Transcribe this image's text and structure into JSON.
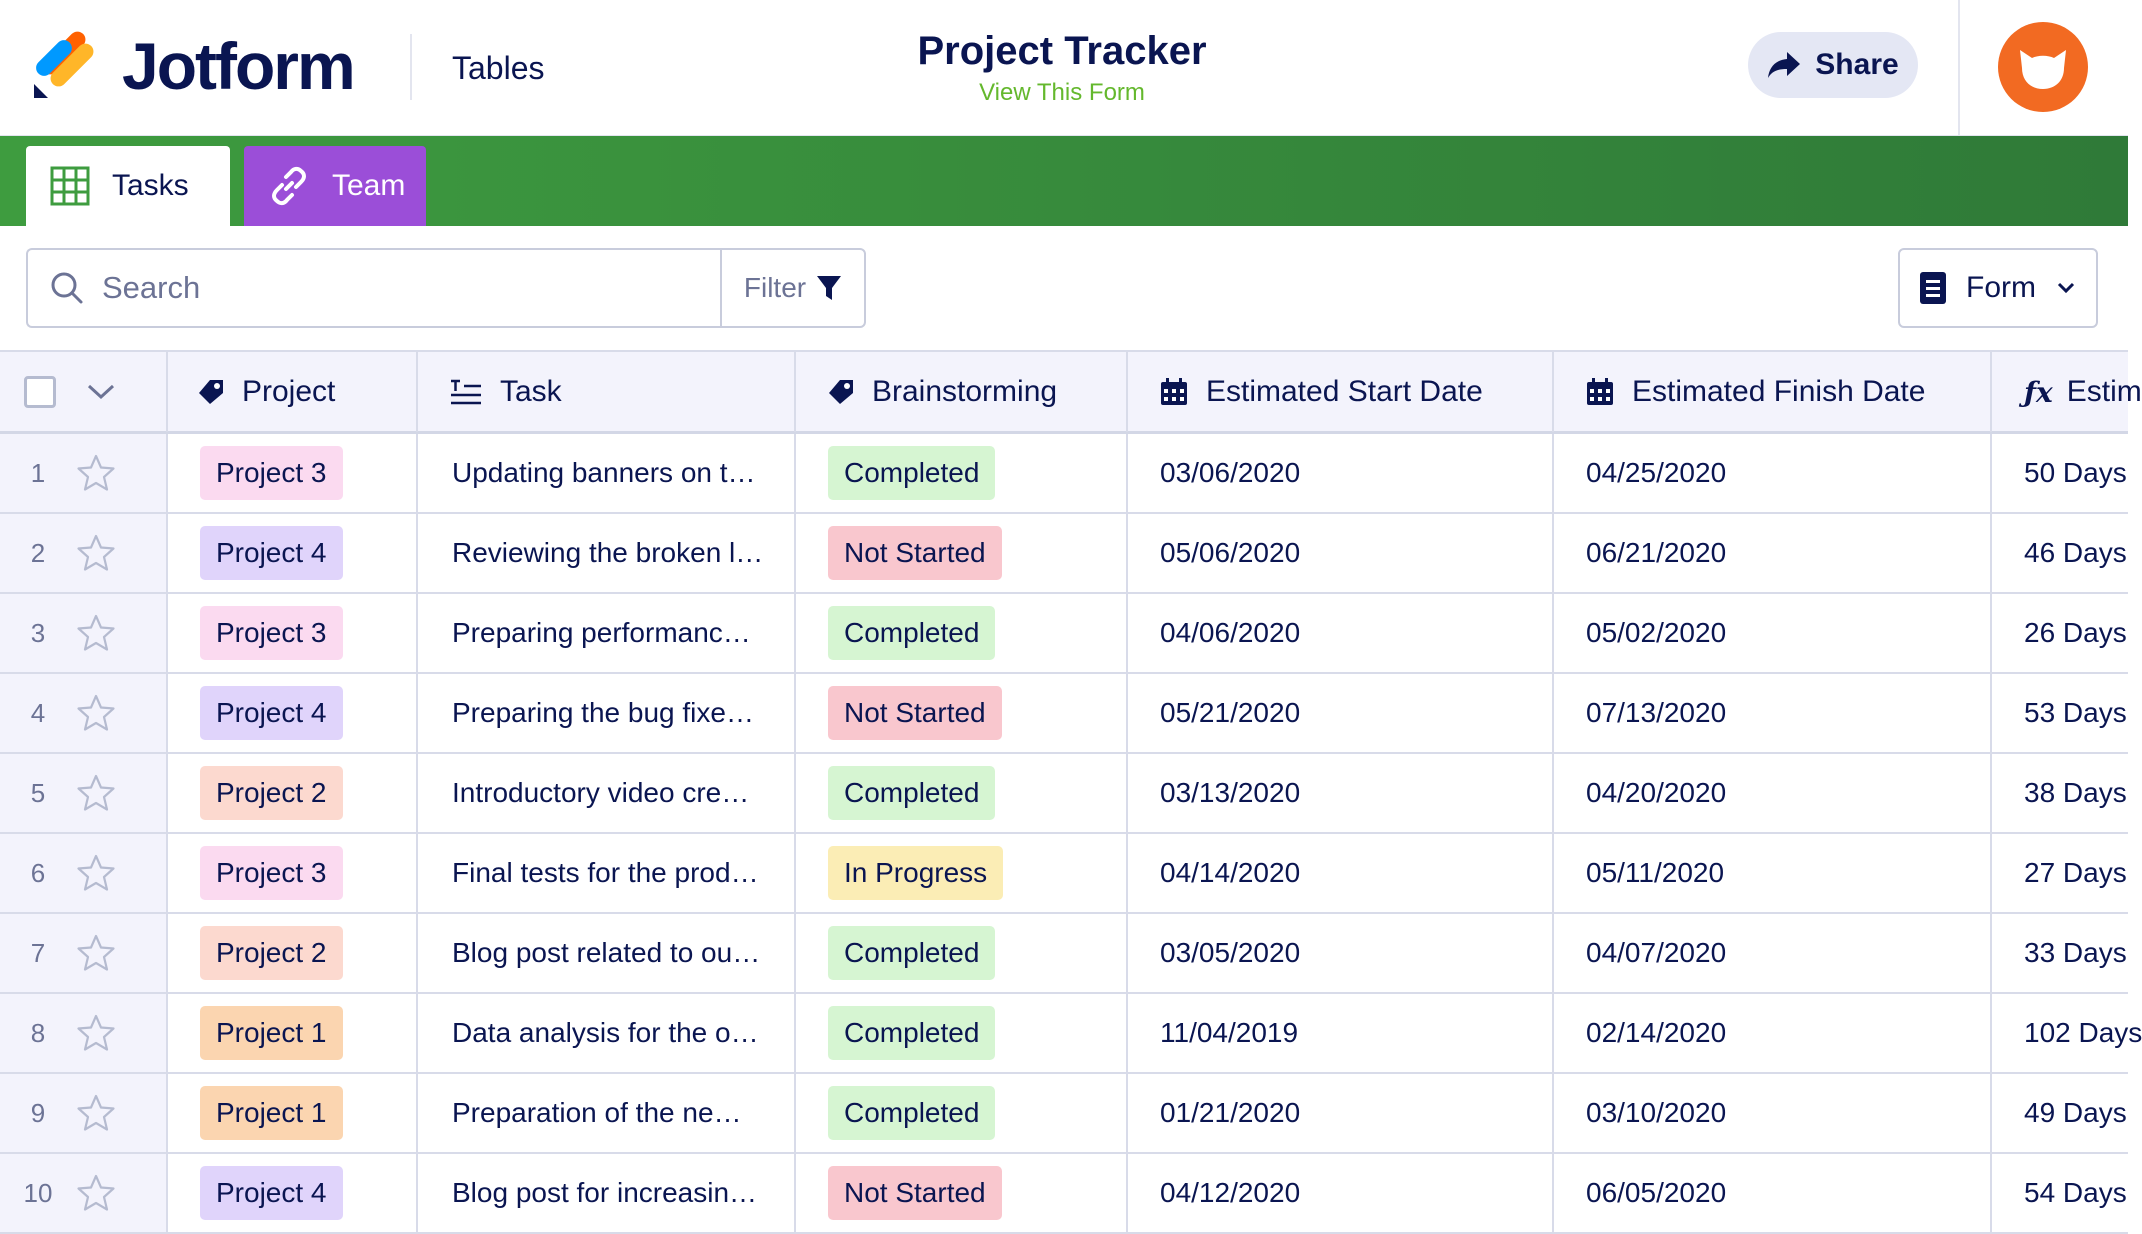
{
  "header": {
    "brand": "Jotform",
    "product": "Tables",
    "title": "Project Tracker",
    "view_form": "View This Form",
    "share_label": "Share"
  },
  "tabs": [
    {
      "label": "Tasks",
      "icon": "grid-icon",
      "active": true
    },
    {
      "label": "Team",
      "icon": "link-icon",
      "active": false
    }
  ],
  "toolbar": {
    "search_placeholder": "Search",
    "filter_label": "Filter",
    "form_label": "Form"
  },
  "columns": {
    "project": "Project",
    "task": "Task",
    "brainstorming": "Brainstorming",
    "start": "Estimated Start Date",
    "finish": "Estimated Finish Date",
    "estimate": "Estim"
  },
  "colors": {
    "project1": "#fbd5b0",
    "project2": "#fcd9cf",
    "project3": "#fbdaf0",
    "project4": "#e0d4fb",
    "completed": "#d6f5d2",
    "not_started": "#f9c7ce",
    "in_progress": "#fbedb5",
    "tabbar": "#378b3c",
    "team_tab": "#9b4ed8"
  },
  "rows": [
    {
      "num": "1",
      "project": "Project 3",
      "task": "Updating banners on t…",
      "status": "Completed",
      "start": "03/06/2020",
      "finish": "04/25/2020",
      "estimate": "50 Days"
    },
    {
      "num": "2",
      "project": "Project 4",
      "task": "Reviewing the broken l…",
      "status": "Not Started",
      "start": "05/06/2020",
      "finish": "06/21/2020",
      "estimate": "46 Days"
    },
    {
      "num": "3",
      "project": "Project 3",
      "task": "Preparing performanc…",
      "status": "Completed",
      "start": "04/06/2020",
      "finish": "05/02/2020",
      "estimate": "26 Days"
    },
    {
      "num": "4",
      "project": "Project 4",
      "task": "Preparing the bug fixe…",
      "status": "Not Started",
      "start": "05/21/2020",
      "finish": "07/13/2020",
      "estimate": "53 Days"
    },
    {
      "num": "5",
      "project": "Project 2",
      "task": "Introductory video cre…",
      "status": "Completed",
      "start": "03/13/2020",
      "finish": "04/20/2020",
      "estimate": "38 Days"
    },
    {
      "num": "6",
      "project": "Project 3",
      "task": "Final tests for the prod…",
      "status": "In Progress",
      "start": "04/14/2020",
      "finish": "05/11/2020",
      "estimate": "27 Days"
    },
    {
      "num": "7",
      "project": "Project 2",
      "task": "Blog post related to ou…",
      "status": "Completed",
      "start": "03/05/2020",
      "finish": "04/07/2020",
      "estimate": "33 Days"
    },
    {
      "num": "8",
      "project": "Project 1",
      "task": "Data analysis for the o…",
      "status": "Completed",
      "start": "11/04/2019",
      "finish": "02/14/2020",
      "estimate": "102 Days"
    },
    {
      "num": "9",
      "project": "Project 1",
      "task": "Preparation of the ne…",
      "status": "Completed",
      "start": "01/21/2020",
      "finish": "03/10/2020",
      "estimate": "49 Days"
    },
    {
      "num": "10",
      "project": "Project 4",
      "task": "Blog post for increasin…",
      "status": "Not Started",
      "start": "04/12/2020",
      "finish": "06/05/2020",
      "estimate": "54 Days"
    }
  ]
}
